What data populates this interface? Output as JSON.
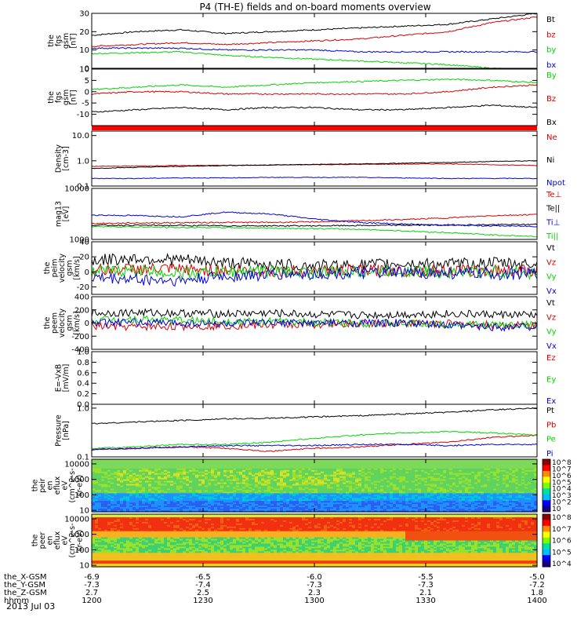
{
  "title": "P4 (TH-E) fields and on-board moments overview",
  "date": "2013 Jul 03",
  "colors": {
    "black": "#000000",
    "red": "#d40000",
    "green": "#00d400",
    "blue": "#0000dd",
    "bar": "#ff0000"
  },
  "chart_data": [
    {
      "type": "line",
      "id": "fgs_mag",
      "ylabel_lines": [
        "the",
        "fgs",
        "gsm",
        "[nT]"
      ],
      "ylim": [
        0,
        30
      ],
      "yticks": [
        "30",
        "20",
        "10",
        "0"
      ],
      "ytick_values": [
        30,
        20,
        10,
        0
      ],
      "x": [
        0,
        0.1,
        0.2,
        0.3,
        0.4,
        0.5,
        0.6,
        0.7,
        0.8,
        0.9,
        1.0
      ],
      "series": [
        {
          "name": "Bt",
          "color": "#000000",
          "values": [
            18,
            20,
            21,
            19,
            20,
            21,
            22,
            23,
            24,
            27,
            30
          ]
        },
        {
          "name": "bz",
          "color": "#d40000",
          "values": [
            12,
            13,
            14,
            13,
            14,
            15,
            16,
            18,
            20,
            25,
            28
          ]
        },
        {
          "name": "by",
          "color": "#00d400",
          "values": [
            8,
            8.5,
            9,
            7,
            6,
            5,
            4,
            3,
            2,
            0,
            -1
          ]
        },
        {
          "name": "bx",
          "color": "#0000dd",
          "values": [
            11,
            11,
            11,
            10,
            10,
            10,
            9,
            9,
            9,
            9,
            9
          ]
        }
      ]
    },
    {
      "type": "line",
      "id": "fgs_gsm",
      "ylabel_lines": [
        "the",
        "fgs",
        "gsm",
        "[nT]"
      ],
      "ylim": [
        -15,
        10
      ],
      "yticks": [
        "10",
        "5",
        "0",
        "-5",
        "-10"
      ],
      "ytick_values": [
        10,
        5,
        0,
        -5,
        -10
      ],
      "x": [
        0,
        0.1,
        0.2,
        0.3,
        0.4,
        0.5,
        0.6,
        0.7,
        0.8,
        0.9,
        1.0
      ],
      "series": [
        {
          "name": "By",
          "color": "#00d400",
          "values": [
            1,
            2,
            3,
            2,
            3,
            4,
            4.5,
            5,
            5.5,
            5,
            4
          ]
        },
        {
          "name": "Bz",
          "color": "#d40000",
          "values": [
            -1,
            0,
            0,
            -1,
            -1,
            -1,
            -1,
            -1,
            0,
            2,
            3
          ]
        },
        {
          "name": "Bx",
          "color": "#000000",
          "values": [
            -9,
            -8,
            -7,
            -8,
            -7,
            -7,
            -8,
            -8,
            -7,
            -6,
            -7
          ]
        }
      ]
    },
    {
      "type": "line",
      "id": "density",
      "yscale": "log",
      "ylabel_lines": [
        "Density",
        "[cm-3]"
      ],
      "ylim": [
        0.1,
        15
      ],
      "yticks": [
        "10.0",
        "1.0",
        "0.1"
      ],
      "ytick_values": [
        10,
        1,
        0.1
      ],
      "x": [
        0,
        0.1,
        0.2,
        0.3,
        0.4,
        0.5,
        0.6,
        0.7,
        0.8,
        0.9,
        1.0
      ],
      "series": [
        {
          "name": "Ne",
          "color": "#d40000",
          "values": [
            0.6,
            0.62,
            0.65,
            0.66,
            0.68,
            0.7,
            0.72,
            0.74,
            0.76,
            0.7,
            0.65
          ]
        },
        {
          "name": "Ni",
          "color": "#000000",
          "values": [
            0.5,
            0.55,
            0.6,
            0.65,
            0.68,
            0.72,
            0.75,
            0.8,
            0.85,
            0.95,
            1.0
          ]
        },
        {
          "name": "Npot",
          "color": "#0000dd",
          "values": [
            0.2,
            0.2,
            0.21,
            0.21,
            0.22,
            0.22,
            0.22,
            0.21,
            0.2,
            0.2,
            0.2
          ]
        }
      ]
    },
    {
      "type": "line",
      "id": "temp",
      "ylabel_lines": [
        "mag13",
        "[eV]"
      ],
      "ylim": [
        1000,
        10000
      ],
      "yticks": [
        "10000",
        "1000"
      ],
      "ytick_values": [
        10000,
        1000
      ],
      "x": [
        0,
        0.1,
        0.2,
        0.3,
        0.4,
        0.5,
        0.6,
        0.7,
        0.8,
        0.9,
        1.0
      ],
      "series": [
        {
          "name": "Te⊥",
          "color": "#d40000",
          "values": [
            3800,
            3900,
            3950,
            4000,
            4000,
            4100,
            4300,
            4500,
            4800,
            5200,
            5400
          ]
        },
        {
          "name": "Te||",
          "color": "#000000",
          "values": [
            3500,
            3500,
            3450,
            3400,
            3400,
            3400,
            3450,
            3500,
            3550,
            3600,
            3650
          ]
        },
        {
          "name": "Ti⊥",
          "color": "#0000dd",
          "values": [
            5300,
            5200,
            5000,
            5800,
            5500,
            4600,
            4000,
            3700,
            3500,
            3400,
            3300
          ]
        },
        {
          "name": "Ti||",
          "color": "#00d400",
          "values": [
            3300,
            3200,
            3100,
            3100,
            3000,
            2900,
            2800,
            2500,
            2200,
            1800,
            1500
          ]
        }
      ]
    },
    {
      "type": "line",
      "id": "peim_vel",
      "ylabel_lines": [
        "the",
        "peim",
        "velocity",
        "gsm",
        "[km/s]"
      ],
      "ylim": [
        -30,
        40
      ],
      "yticks": [
        "40",
        "20",
        "0",
        "-20"
      ],
      "ytick_values": [
        40,
        20,
        0,
        -20
      ],
      "x": [
        0,
        0.1,
        0.2,
        0.3,
        0.4,
        0.5,
        0.6,
        0.7,
        0.8,
        0.9,
        1.0
      ],
      "series": [
        {
          "name": "Vt",
          "color": "#000000",
          "values": [
            15,
            18,
            16,
            12,
            10,
            8,
            9,
            11,
            10,
            12,
            10
          ]
        },
        {
          "name": "Vz",
          "color": "#d40000",
          "values": [
            2,
            4,
            3,
            2,
            1,
            1,
            2,
            1,
            1,
            2,
            2
          ]
        },
        {
          "name": "Vy",
          "color": "#00d400",
          "values": [
            0,
            2,
            -2,
            0,
            1,
            -1,
            0,
            1,
            -1,
            0,
            -2
          ]
        },
        {
          "name": "Vx",
          "color": "#0000dd",
          "values": [
            -8,
            -10,
            -12,
            -6,
            -4,
            -3,
            -2,
            -1,
            -2,
            -3,
            -2
          ]
        }
      ]
    },
    {
      "type": "line",
      "id": "peem_vel",
      "ylabel_lines": [
        "the",
        "peem",
        "velocity",
        "gsm",
        "[km/s]"
      ],
      "ylim": [
        -400,
        400
      ],
      "yticks": [
        "400",
        "200",
        "0",
        "-200",
        "-400"
      ],
      "ytick_values": [
        400,
        200,
        0,
        -200,
        -400
      ],
      "x": [
        0,
        0.1,
        0.2,
        0.3,
        0.4,
        0.5,
        0.6,
        0.7,
        0.8,
        0.9,
        1.0
      ],
      "series": [
        {
          "name": "Vt",
          "color": "#000000",
          "values": [
            150,
            160,
            150,
            140,
            150,
            130,
            120,
            130,
            140,
            130,
            120
          ]
        },
        {
          "name": "Vz",
          "color": "#d40000",
          "values": [
            -50,
            -60,
            -50,
            -40,
            -30,
            -20,
            -10,
            0,
            -10,
            -30,
            -40
          ]
        },
        {
          "name": "Vy",
          "color": "#00d400",
          "values": [
            50,
            60,
            40,
            30,
            20,
            10,
            0,
            -10,
            -20,
            -30,
            -20
          ]
        },
        {
          "name": "Vx",
          "color": "#0000dd",
          "values": [
            0,
            10,
            0,
            -10,
            0,
            0,
            0,
            0,
            -40,
            -60,
            -50
          ]
        }
      ]
    },
    {
      "type": "line",
      "id": "efield",
      "ylabel_lines": [
        "E=-VxB",
        "[mV/m]"
      ],
      "ylim": [
        0,
        1
      ],
      "yticks": [
        "1.0",
        "0.8",
        "0.6",
        "0.4",
        "0.2",
        "0.0"
      ],
      "ytick_values": [
        1,
        0.8,
        0.6,
        0.4,
        0.2,
        0
      ],
      "x": [],
      "series": [
        {
          "name": "Ez",
          "color": "#d40000",
          "values": []
        },
        {
          "name": "Ey",
          "color": "#00d400",
          "values": []
        },
        {
          "name": "Ex",
          "color": "#0000dd",
          "values": []
        }
      ]
    },
    {
      "type": "line",
      "id": "pressure",
      "yscale": "log",
      "ylabel_lines": [
        "Pressure",
        "[nPa]"
      ],
      "ylim": [
        0.1,
        1.2
      ],
      "yticks": [
        "1.0",
        "0.1"
      ],
      "ytick_values": [
        1,
        0.1
      ],
      "x": [
        0,
        0.1,
        0.2,
        0.3,
        0.4,
        0.5,
        0.6,
        0.7,
        0.8,
        0.9,
        1.0
      ],
      "series": [
        {
          "name": "Pt",
          "color": "#000000",
          "values": [
            0.48,
            0.52,
            0.56,
            0.6,
            0.62,
            0.66,
            0.7,
            0.76,
            0.82,
            0.92,
            1.0
          ]
        },
        {
          "name": "Pb",
          "color": "#d40000",
          "values": [
            0.14,
            0.15,
            0.16,
            0.15,
            0.13,
            0.15,
            0.16,
            0.18,
            0.2,
            0.25,
            0.28
          ]
        },
        {
          "name": "Pe",
          "color": "#00d400",
          "values": [
            0.15,
            0.16,
            0.18,
            0.18,
            0.2,
            0.24,
            0.28,
            0.31,
            0.33,
            0.31,
            0.28
          ]
        },
        {
          "name": "Pi",
          "color": "#0000dd",
          "values": [
            0.14,
            0.15,
            0.16,
            0.17,
            0.17,
            0.17,
            0.18,
            0.18,
            0.17,
            0.18,
            0.18
          ]
        }
      ]
    },
    {
      "type": "heatmap",
      "id": "peir_spec",
      "ylabel_lines": [
        "the",
        "peir",
        "en",
        "eflux",
        "eV",
        "(cm^2-s-",
        "sr-eV)"
      ],
      "yscale": "log",
      "ylim": [
        8,
        20000
      ],
      "yticks": [
        "10000",
        "1000",
        "100",
        "10"
      ],
      "ytick_values": [
        10000,
        1000,
        100,
        10
      ],
      "colorbar_ticks": [
        "10^8",
        "10^7",
        "10^6",
        "10^5",
        "10^4",
        "10^3",
        "10^2",
        "10"
      ]
    },
    {
      "type": "heatmap",
      "id": "peer_spec",
      "ylabel_lines": [
        "the",
        "peer",
        "en",
        "eflux",
        "eV",
        "(cm^2-s-",
        "sr-eV)"
      ],
      "yscale": "log",
      "ylim": [
        8,
        20000
      ],
      "yticks": [
        "10000",
        "1000",
        "100",
        "10"
      ],
      "ytick_values": [
        10000,
        1000,
        100,
        10
      ],
      "colorbar_ticks": [
        "10^8",
        "10^7",
        "10^6",
        "10^5",
        "10^4"
      ]
    }
  ],
  "xaxis": {
    "rows": [
      {
        "label": "the_X-GSM",
        "values": [
          "-6.9",
          "-6.5",
          "-6.0",
          "-5.5",
          "-5.0"
        ]
      },
      {
        "label": "the_Y-GSM",
        "values": [
          "-7.3",
          "-7.4",
          "-7.3",
          "-7.3",
          "-7.2"
        ]
      },
      {
        "label": "the_Z-GSM",
        "values": [
          "2.7",
          "2.5",
          "2.3",
          "2.1",
          "1.8"
        ]
      },
      {
        "label": "hhmm",
        "values": [
          "1200",
          "1230",
          "1300",
          "1330",
          "1400"
        ]
      }
    ]
  }
}
